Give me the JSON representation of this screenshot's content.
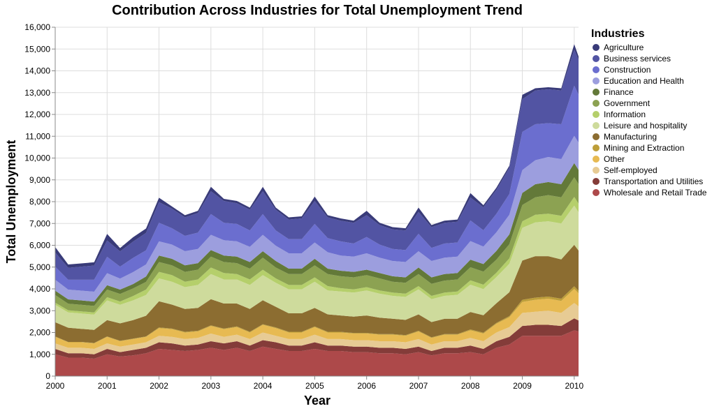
{
  "chart_data": {
    "type": "area",
    "stacked": true,
    "title": "Contribution Across Industries for Total Unemployment Trend",
    "xlabel": "Year",
    "ylabel": "Total Unemployment",
    "legend_title": "Industries",
    "legend_position": "right",
    "grid": true,
    "xlim": [
      "2000-01",
      "2010-02"
    ],
    "ylim": [
      0,
      16000
    ],
    "x_ticks": [
      "2000",
      "2001",
      "2002",
      "2003",
      "2004",
      "2005",
      "2006",
      "2007",
      "2008",
      "2009",
      "2010"
    ],
    "y_ticks": [
      "0",
      "1,000",
      "2,000",
      "3,000",
      "4,000",
      "5,000",
      "6,000",
      "7,000",
      "8,000",
      "9,000",
      "10,000",
      "11,000",
      "12,000",
      "13,000",
      "14,000",
      "15,000",
      "16,000"
    ],
    "x": [
      "2000-01",
      "2000-04",
      "2000-07",
      "2000-10",
      "2001-01",
      "2001-04",
      "2001-07",
      "2001-10",
      "2002-01",
      "2002-04",
      "2002-07",
      "2002-10",
      "2003-01",
      "2003-04",
      "2003-07",
      "2003-10",
      "2004-01",
      "2004-04",
      "2004-07",
      "2004-10",
      "2005-01",
      "2005-04",
      "2005-07",
      "2005-10",
      "2006-01",
      "2006-04",
      "2006-07",
      "2006-10",
      "2007-01",
      "2007-04",
      "2007-07",
      "2007-10",
      "2008-01",
      "2008-04",
      "2008-07",
      "2008-10",
      "2009-01",
      "2009-04",
      "2009-07",
      "2009-10",
      "2010-01",
      "2010-02"
    ],
    "series": [
      {
        "name": "Wholesale and Retail Trade",
        "color": "#ad494a",
        "values": [
          1000,
          850,
          850,
          800,
          1000,
          900,
          950,
          1050,
          1250,
          1200,
          1150,
          1200,
          1300,
          1200,
          1300,
          1150,
          1350,
          1250,
          1150,
          1150,
          1250,
          1150,
          1150,
          1100,
          1100,
          1050,
          1050,
          1000,
          1100,
          950,
          1050,
          1050,
          1100,
          1000,
          1300,
          1450,
          1850,
          1850,
          1850,
          1850,
          2100,
          2050
        ]
      },
      {
        "name": "Transportation and Utilities",
        "color": "#843c39",
        "values": [
          250,
          200,
          200,
          200,
          250,
          200,
          250,
          250,
          300,
          300,
          250,
          250,
          300,
          300,
          300,
          250,
          300,
          300,
          250,
          250,
          300,
          250,
          250,
          250,
          250,
          250,
          250,
          250,
          250,
          200,
          250,
          250,
          300,
          250,
          300,
          350,
          450,
          500,
          500,
          450,
          550,
          500
        ]
      },
      {
        "name": "Self-employed",
        "color": "#e7cb94",
        "values": [
          250,
          250,
          250,
          250,
          250,
          250,
          250,
          250,
          300,
          300,
          300,
          300,
          350,
          300,
          300,
          300,
          350,
          300,
          300,
          300,
          350,
          300,
          300,
          300,
          300,
          300,
          300,
          300,
          350,
          300,
          300,
          300,
          350,
          350,
          400,
          450,
          600,
          600,
          650,
          600,
          700,
          650
        ]
      },
      {
        "name": "Other",
        "color": "#e7ba52",
        "values": [
          300,
          250,
          250,
          250,
          300,
          250,
          250,
          250,
          350,
          350,
          300,
          300,
          350,
          350,
          350,
          300,
          350,
          350,
          300,
          300,
          350,
          300,
          300,
          300,
          300,
          300,
          300,
          300,
          350,
          300,
          300,
          300,
          350,
          350,
          400,
          450,
          500,
          550,
          550,
          550,
          650,
          600
        ]
      },
      {
        "name": "Mining and Extraction",
        "color": "#bd9e39",
        "values": [
          20,
          20,
          20,
          20,
          20,
          20,
          20,
          20,
          30,
          30,
          30,
          30,
          30,
          30,
          30,
          30,
          30,
          30,
          30,
          30,
          30,
          30,
          30,
          30,
          30,
          30,
          30,
          30,
          30,
          30,
          30,
          30,
          40,
          40,
          40,
          50,
          100,
          100,
          100,
          100,
          120,
          110
        ]
      },
      {
        "name": "Manufacturing",
        "color": "#8c6d31",
        "values": [
          650,
          650,
          600,
          600,
          750,
          800,
          850,
          950,
          1200,
          1100,
          1050,
          1050,
          1200,
          1150,
          1050,
          1050,
          1100,
          950,
          850,
          850,
          850,
          800,
          750,
          750,
          800,
          750,
          700,
          700,
          750,
          700,
          700,
          700,
          800,
          800,
          900,
          1100,
          1800,
          1900,
          1850,
          1800,
          1900,
          1850
        ]
      },
      {
        "name": "Leisure and hospitality",
        "color": "#cedb9c",
        "values": [
          800,
          700,
          700,
          700,
          900,
          850,
          900,
          950,
          1050,
          1050,
          1000,
          1050,
          1150,
          1100,
          1100,
          1100,
          1150,
          1100,
          1100,
          1100,
          1200,
          1100,
          1100,
          1100,
          1150,
          1100,
          1050,
          1050,
          1150,
          1050,
          1050,
          1100,
          1250,
          1200,
          1200,
          1300,
          1500,
          1550,
          1600,
          1650,
          1800,
          1750
        ]
      },
      {
        "name": "Information",
        "color": "#b5cf6b",
        "values": [
          100,
          100,
          100,
          100,
          150,
          150,
          200,
          250,
          300,
          300,
          250,
          250,
          300,
          300,
          250,
          250,
          250,
          200,
          200,
          200,
          200,
          200,
          150,
          150,
          150,
          150,
          150,
          150,
          150,
          150,
          150,
          150,
          200,
          200,
          200,
          250,
          300,
          350,
          350,
          350,
          400,
          400
        ]
      },
      {
        "name": "Government",
        "color": "#8ca252",
        "values": [
          350,
          300,
          300,
          300,
          350,
          350,
          350,
          350,
          450,
          450,
          450,
          450,
          500,
          500,
          500,
          500,
          550,
          500,
          500,
          500,
          550,
          550,
          550,
          550,
          550,
          550,
          500,
          500,
          550,
          550,
          550,
          550,
          600,
          600,
          600,
          650,
          750,
          800,
          850,
          850,
          900,
          900
        ]
      },
      {
        "name": "Finance",
        "color": "#637939",
        "values": [
          200,
          200,
          200,
          200,
          200,
          200,
          200,
          250,
          300,
          300,
          300,
          300,
          300,
          300,
          300,
          300,
          300,
          300,
          250,
          250,
          300,
          250,
          250,
          250,
          250,
          250,
          250,
          250,
          300,
          300,
          300,
          300,
          350,
          350,
          400,
          450,
          550,
          600,
          600,
          600,
          650,
          650
        ]
      },
      {
        "name": "Education and Health",
        "color": "#9c9ede",
        "values": [
          500,
          450,
          450,
          450,
          550,
          500,
          550,
          550,
          650,
          650,
          650,
          650,
          700,
          700,
          700,
          700,
          750,
          700,
          700,
          700,
          750,
          750,
          700,
          700,
          750,
          700,
          700,
          700,
          750,
          750,
          750,
          750,
          850,
          800,
          850,
          900,
          1050,
          1100,
          1150,
          1150,
          1250,
          1250
        ]
      },
      {
        "name": "Construction",
        "color": "#6b6ecf",
        "values": [
          600,
          450,
          500,
          550,
          750,
          550,
          650,
          650,
          850,
          750,
          700,
          750,
          950,
          800,
          800,
          750,
          950,
          700,
          650,
          650,
          850,
          650,
          650,
          600,
          750,
          600,
          550,
          550,
          800,
          600,
          650,
          650,
          950,
          750,
          850,
          950,
          1750,
          1650,
          1550,
          1600,
          2300,
          2200
        ]
      },
      {
        "name": "Business services",
        "color": "#5254a3",
        "values": [
          650,
          550,
          600,
          650,
          750,
          700,
          750,
          800,
          950,
          900,
          850,
          900,
          1050,
          1000,
          950,
          950,
          1050,
          950,
          900,
          950,
          1050,
          950,
          950,
          950,
          1000,
          900,
          900,
          900,
          1000,
          950,
          950,
          950,
          1050,
          1050,
          1100,
          1200,
          1500,
          1550,
          1550,
          1550,
          1650,
          1600
        ]
      },
      {
        "name": "Agriculture",
        "color": "#393b79",
        "values": [
          250,
          150,
          150,
          150,
          300,
          150,
          200,
          200,
          200,
          100,
          100,
          100,
          200,
          100,
          100,
          100,
          200,
          100,
          100,
          100,
          200,
          100,
          100,
          100,
          200,
          100,
          100,
          100,
          200,
          100,
          100,
          100,
          200,
          100,
          100,
          100,
          200,
          100,
          100,
          100,
          250,
          150
        ]
      }
    ]
  }
}
